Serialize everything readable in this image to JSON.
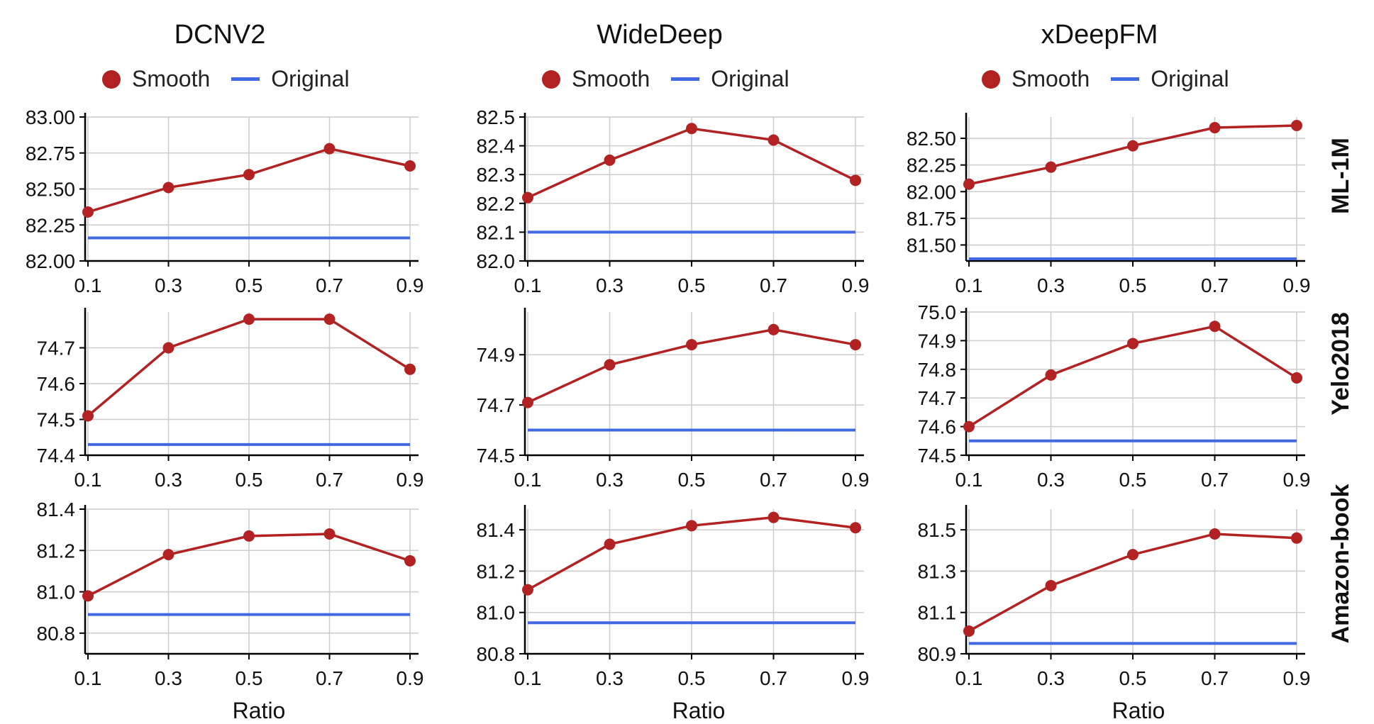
{
  "figure": {
    "column_titles": [
      "DCNV2",
      "WideDeep",
      "xDeepFM"
    ],
    "row_labels": [
      "ML-1M",
      "Yelo2018",
      "Amazon-book"
    ],
    "x_axis_label": "Ratio",
    "legend": {
      "smooth": "Smooth",
      "original": "Original"
    },
    "colors": {
      "smooth": "#b22222",
      "original": "#4169e1",
      "grid": "#cccccc",
      "axis": "#000000"
    }
  },
  "chart_data": [
    {
      "type": "line",
      "model": "DCNV2",
      "dataset": "ML-1M",
      "x": [
        0.1,
        0.3,
        0.5,
        0.7,
        0.9
      ],
      "x_ticks": [
        "0.1",
        "0.3",
        "0.5",
        "0.7",
        "0.9"
      ],
      "series": [
        {
          "name": "Smooth",
          "values": [
            82.34,
            82.51,
            82.6,
            82.78,
            82.66
          ]
        },
        {
          "name": "Original",
          "values": [
            82.16,
            82.16,
            82.16,
            82.16,
            82.16
          ]
        }
      ],
      "ylim": [
        82.0,
        83.0
      ],
      "y_ticks": [
        "82.00",
        "82.25",
        "82.50",
        "82.75",
        "83.00"
      ]
    },
    {
      "type": "line",
      "model": "WideDeep",
      "dataset": "ML-1M",
      "x": [
        0.1,
        0.3,
        0.5,
        0.7,
        0.9
      ],
      "x_ticks": [
        "0.1",
        "0.3",
        "0.5",
        "0.7",
        "0.9"
      ],
      "series": [
        {
          "name": "Smooth",
          "values": [
            82.22,
            82.35,
            82.46,
            82.42,
            82.28
          ]
        },
        {
          "name": "Original",
          "values": [
            82.1,
            82.1,
            82.1,
            82.1,
            82.1
          ]
        }
      ],
      "ylim": [
        82.0,
        82.5
      ],
      "y_ticks": [
        "82.0",
        "82.1",
        "82.2",
        "82.3",
        "82.4",
        "82.5"
      ]
    },
    {
      "type": "line",
      "model": "xDeepFM",
      "dataset": "ML-1M",
      "x": [
        0.1,
        0.3,
        0.5,
        0.7,
        0.9
      ],
      "x_ticks": [
        "0.1",
        "0.3",
        "0.5",
        "0.7",
        "0.9"
      ],
      "series": [
        {
          "name": "Smooth",
          "values": [
            82.07,
            82.23,
            82.43,
            82.6,
            82.62
          ]
        },
        {
          "name": "Original",
          "values": [
            81.37,
            81.37,
            81.37,
            81.37,
            81.37
          ]
        }
      ],
      "ylim": [
        81.35,
        82.7
      ],
      "y_ticks": [
        "81.50",
        "81.75",
        "82.00",
        "82.25",
        "82.50"
      ]
    },
    {
      "type": "line",
      "model": "DCNV2",
      "dataset": "Yelo2018",
      "x": [
        0.1,
        0.3,
        0.5,
        0.7,
        0.9
      ],
      "x_ticks": [
        "0.1",
        "0.3",
        "0.5",
        "0.7",
        "0.9"
      ],
      "series": [
        {
          "name": "Smooth",
          "values": [
            74.51,
            74.7,
            74.78,
            74.78,
            74.64
          ]
        },
        {
          "name": "Original",
          "values": [
            74.43,
            74.43,
            74.43,
            74.43,
            74.43
          ]
        }
      ],
      "ylim": [
        74.4,
        74.8
      ],
      "y_ticks": [
        "74.4",
        "74.5",
        "74.6",
        "74.7"
      ]
    },
    {
      "type": "line",
      "model": "WideDeep",
      "dataset": "Yelo2018",
      "x": [
        0.1,
        0.3,
        0.5,
        0.7,
        0.9
      ],
      "x_ticks": [
        "0.1",
        "0.3",
        "0.5",
        "0.7",
        "0.9"
      ],
      "series": [
        {
          "name": "Smooth",
          "values": [
            74.71,
            74.86,
            74.94,
            75.0,
            74.94
          ]
        },
        {
          "name": "Original",
          "values": [
            74.6,
            74.6,
            74.6,
            74.6,
            74.6
          ]
        }
      ],
      "ylim": [
        74.5,
        75.07
      ],
      "y_ticks": [
        "74.5",
        "74.7",
        "74.9"
      ]
    },
    {
      "type": "line",
      "model": "xDeepFM",
      "dataset": "Yelo2018",
      "x": [
        0.1,
        0.3,
        0.5,
        0.7,
        0.9
      ],
      "x_ticks": [
        "0.1",
        "0.3",
        "0.5",
        "0.7",
        "0.9"
      ],
      "series": [
        {
          "name": "Smooth",
          "values": [
            74.6,
            74.78,
            74.89,
            74.95,
            74.77
          ]
        },
        {
          "name": "Original",
          "values": [
            74.55,
            74.55,
            74.55,
            74.55,
            74.55
          ]
        }
      ],
      "ylim": [
        74.5,
        75.0
      ],
      "y_ticks": [
        "74.5",
        "74.6",
        "74.7",
        "74.8",
        "74.9",
        "75.0"
      ]
    },
    {
      "type": "line",
      "model": "DCNV2",
      "dataset": "Amazon-book",
      "x": [
        0.1,
        0.3,
        0.5,
        0.7,
        0.9
      ],
      "x_ticks": [
        "0.1",
        "0.3",
        "0.5",
        "0.7",
        "0.9"
      ],
      "series": [
        {
          "name": "Smooth",
          "values": [
            80.98,
            81.18,
            81.27,
            81.28,
            81.15
          ]
        },
        {
          "name": "Original",
          "values": [
            80.89,
            80.89,
            80.89,
            80.89,
            80.89
          ]
        }
      ],
      "ylim": [
        80.7,
        81.4
      ],
      "y_ticks": [
        "80.8",
        "81.0",
        "81.2",
        "81.4"
      ]
    },
    {
      "type": "line",
      "model": "WideDeep",
      "dataset": "Amazon-book",
      "x": [
        0.1,
        0.3,
        0.5,
        0.7,
        0.9
      ],
      "x_ticks": [
        "0.1",
        "0.3",
        "0.5",
        "0.7",
        "0.9"
      ],
      "series": [
        {
          "name": "Smooth",
          "values": [
            81.11,
            81.33,
            81.42,
            81.46,
            81.41
          ]
        },
        {
          "name": "Original",
          "values": [
            80.95,
            80.95,
            80.95,
            80.95,
            80.95
          ]
        }
      ],
      "ylim": [
        80.8,
        81.5
      ],
      "y_ticks": [
        "80.8",
        "81.0",
        "81.2",
        "81.4"
      ]
    },
    {
      "type": "line",
      "model": "xDeepFM",
      "dataset": "Amazon-book",
      "x": [
        0.1,
        0.3,
        0.5,
        0.7,
        0.9
      ],
      "x_ticks": [
        "0.1",
        "0.3",
        "0.5",
        "0.7",
        "0.9"
      ],
      "series": [
        {
          "name": "Smooth",
          "values": [
            81.01,
            81.23,
            81.38,
            81.48,
            81.46
          ]
        },
        {
          "name": "Original",
          "values": [
            80.95,
            80.95,
            80.95,
            80.95,
            80.95
          ]
        }
      ],
      "ylim": [
        80.9,
        81.6
      ],
      "y_ticks": [
        "80.9",
        "81.1",
        "81.3",
        "81.5"
      ]
    }
  ]
}
